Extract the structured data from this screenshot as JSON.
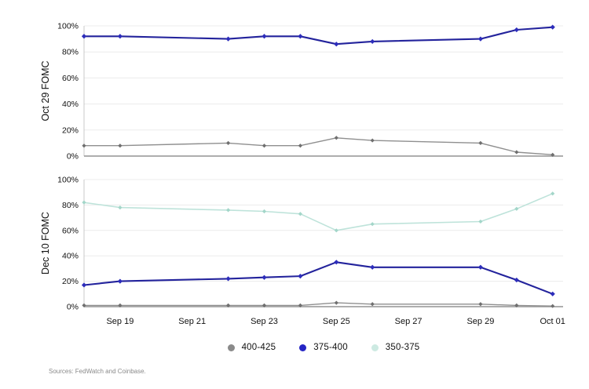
{
  "figure": {
    "source_note": "Sources: FedWatch and Coinbase."
  },
  "legend": {
    "items": [
      {
        "label": "400-425",
        "dot_color": "#8a8a8a"
      },
      {
        "label": "375-400",
        "dot_color": "#2525c4"
      },
      {
        "label": "350-375",
        "dot_color": "#cdeae2"
      }
    ]
  },
  "axis": {
    "x_tick_labels": [
      "Sep 19",
      "Sep 21",
      "Sep 23",
      "Sep 25",
      "Sep 27",
      "Sep 29",
      "Oct 01"
    ],
    "x_tick_days": [
      1,
      3,
      5,
      7,
      9,
      11,
      13
    ],
    "point_dates": [
      "Sep 18",
      "Sep 19",
      "Sep 22",
      "Sep 23",
      "Sep 24",
      "Sep 25",
      "Sep 26",
      "Sep 29",
      "Sep 30",
      "Oct 01"
    ],
    "point_days": [
      0,
      1,
      4,
      5,
      6,
      7,
      8,
      11,
      12,
      13
    ],
    "y_tick_labels": [
      "0%",
      "20%",
      "40%",
      "60%",
      "80%",
      "100%"
    ],
    "y_tick_values": [
      0,
      20,
      40,
      60,
      80,
      100
    ]
  },
  "chart_data": [
    {
      "type": "line",
      "title": "Oct 29 FOMC",
      "ylim": [
        0,
        100
      ],
      "grid": true,
      "legend_position": "bottom",
      "x": [
        "Sep 18",
        "Sep 19",
        "Sep 22",
        "Sep 23",
        "Sep 24",
        "Sep 25",
        "Sep 26",
        "Sep 29",
        "Sep 30",
        "Oct 01"
      ],
      "series": [
        {
          "name": "400-425",
          "line_color": "#8f8f8f",
          "marker_color": "#6f6f6f",
          "line_width": 1.4,
          "values": [
            8,
            8,
            10,
            8,
            8,
            14,
            12,
            10,
            3,
            1
          ]
        },
        {
          "name": "375-400",
          "line_color": "#23239c",
          "marker_color": "#2d2dbb",
          "line_width": 2.1,
          "values": [
            92,
            92,
            90,
            92,
            92,
            86,
            88,
            90,
            97,
            99
          ]
        }
      ]
    },
    {
      "type": "line",
      "title": "Dec 10 FOMC",
      "ylim": [
        0,
        100
      ],
      "grid": true,
      "legend_position": "bottom",
      "x": [
        "Sep 18",
        "Sep 19",
        "Sep 22",
        "Sep 23",
        "Sep 24",
        "Sep 25",
        "Sep 26",
        "Sep 29",
        "Sep 30",
        "Oct 01"
      ],
      "series": [
        {
          "name": "350-375",
          "line_color": "#bee3da",
          "marker_color": "#a3d6c9",
          "line_width": 1.6,
          "values": [
            82,
            78,
            76,
            75,
            73,
            60,
            65,
            67,
            77,
            89
          ]
        },
        {
          "name": "400-425",
          "line_color": "#8f8f8f",
          "marker_color": "#6f6f6f",
          "line_width": 1.4,
          "values": [
            1,
            1,
            1,
            1,
            1,
            3,
            2,
            2,
            1,
            0.5
          ]
        },
        {
          "name": "375-400",
          "line_color": "#23239c",
          "marker_color": "#2d2dbb",
          "line_width": 2.1,
          "values": [
            17,
            20,
            22,
            23,
            24,
            35,
            31,
            31,
            21,
            10
          ]
        }
      ]
    }
  ]
}
